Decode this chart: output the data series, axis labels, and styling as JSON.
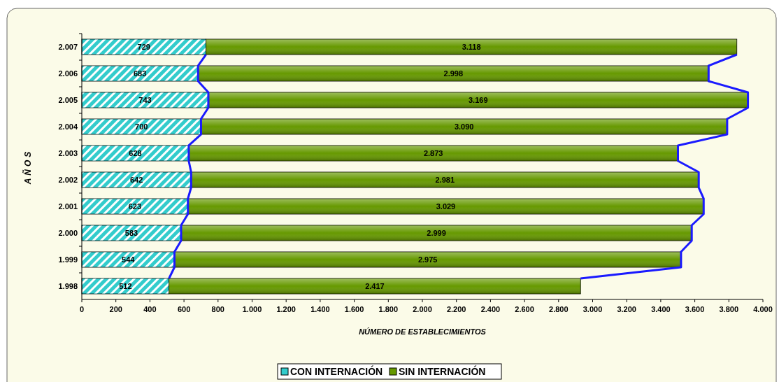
{
  "chart_data": {
    "type": "bar",
    "orientation": "horizontal",
    "stacked": true,
    "categories": [
      "2.007",
      "2.006",
      "2.005",
      "2.004",
      "2.003",
      "2.002",
      "2.001",
      "2.000",
      "1.999",
      "1.998"
    ],
    "series": [
      {
        "name": "CON INTERNACIÓN",
        "color": "#33cccc",
        "values": [
          729,
          683,
          743,
          700,
          628,
          642,
          623,
          583,
          544,
          512
        ],
        "value_labels": [
          "729",
          "683",
          "743",
          "700",
          "628",
          "642",
          "623",
          "583",
          "544",
          "512"
        ]
      },
      {
        "name": "SIN INTERNACIÓN",
        "color": "#669900",
        "values": [
          3118,
          2998,
          3169,
          3090,
          2873,
          2981,
          3029,
          2999,
          2975,
          2417
        ],
        "value_labels": [
          "3.118",
          "2.998",
          "3.169",
          "3.090",
          "2.873",
          "2.981",
          "3.029",
          "2.999",
          "2.975",
          "2.417"
        ]
      }
    ],
    "xlim": [
      0,
      4000
    ],
    "xticks": [
      0,
      200,
      400,
      600,
      {
        "value": 800,
        "label": "800"
      },
      {
        "value": 1000,
        "label": "1.000"
      },
      {
        "value": 1200,
        "label": "1.200"
      },
      {
        "value": 1400,
        "label": "1.400"
      },
      {
        "value": 1600,
        "label": "1.600"
      },
      {
        "value": 1800,
        "label": "1.800"
      },
      {
        "value": 2000,
        "label": "2.000"
      },
      {
        "value": 2200,
        "label": "2.200"
      },
      {
        "value": 2400,
        "label": "2.400"
      },
      {
        "value": 2600,
        "label": "2.600"
      },
      {
        "value": 2800,
        "label": "2.800"
      },
      {
        "value": 3000,
        "label": "3.000"
      },
      {
        "value": 3200,
        "label": "3.200"
      },
      {
        "value": 3400,
        "label": "3.400"
      },
      {
        "value": 3600,
        "label": "3.600"
      },
      {
        "value": 3800,
        "label": "3.800"
      },
      {
        "value": 4000,
        "label": "4.000"
      }
    ],
    "xlabel": "NÚMERO DE ESTABLECIMIENTOS",
    "ylabel": "AÑOS",
    "legend": "bottom",
    "grid": false
  }
}
